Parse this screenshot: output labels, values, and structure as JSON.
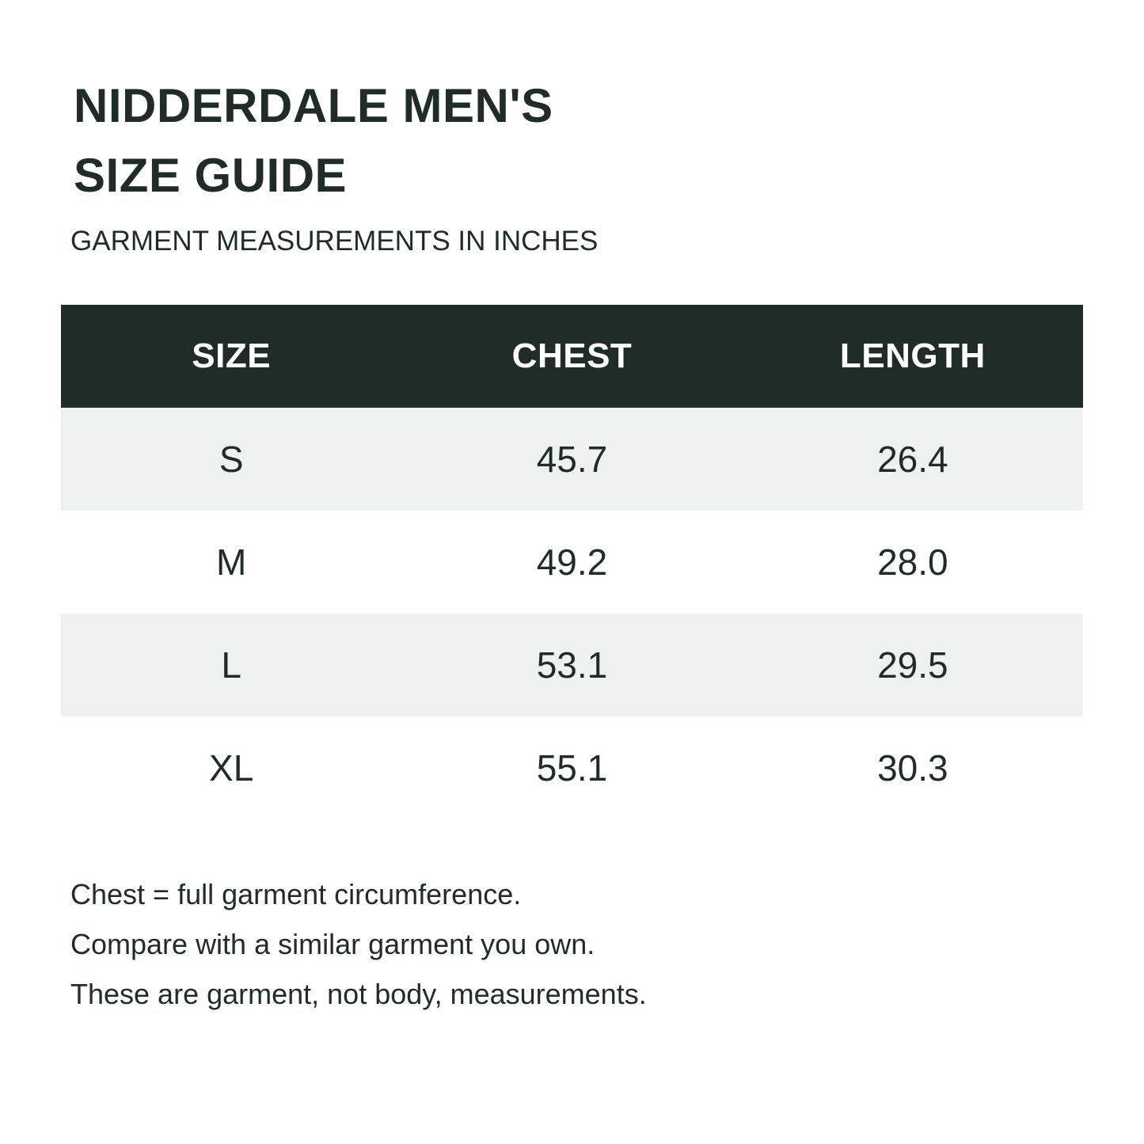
{
  "title_lines": [
    "NIDDERDALE MEN'S",
    "SIZE GUIDE"
  ],
  "subtitle": "GARMENT MEASUREMENTS IN INCHES",
  "table": {
    "headers": [
      "SIZE",
      "CHEST",
      "LENGTH"
    ],
    "rows": [
      [
        "S",
        "45.7",
        "26.4"
      ],
      [
        "M",
        "49.2",
        "28.0"
      ],
      [
        "L",
        "53.1",
        "29.5"
      ],
      [
        "XL",
        "55.1",
        "30.3"
      ]
    ]
  },
  "notes": [
    "Chest = full garment circumference.",
    "Compare with a similar garment you own.",
    "These are garment, not body, measurements."
  ],
  "colors": {
    "header_bg": "#1f2d26",
    "header_text": "#ffffff",
    "stripe_bg": "#eef2ef",
    "text": "#1f2d26"
  }
}
